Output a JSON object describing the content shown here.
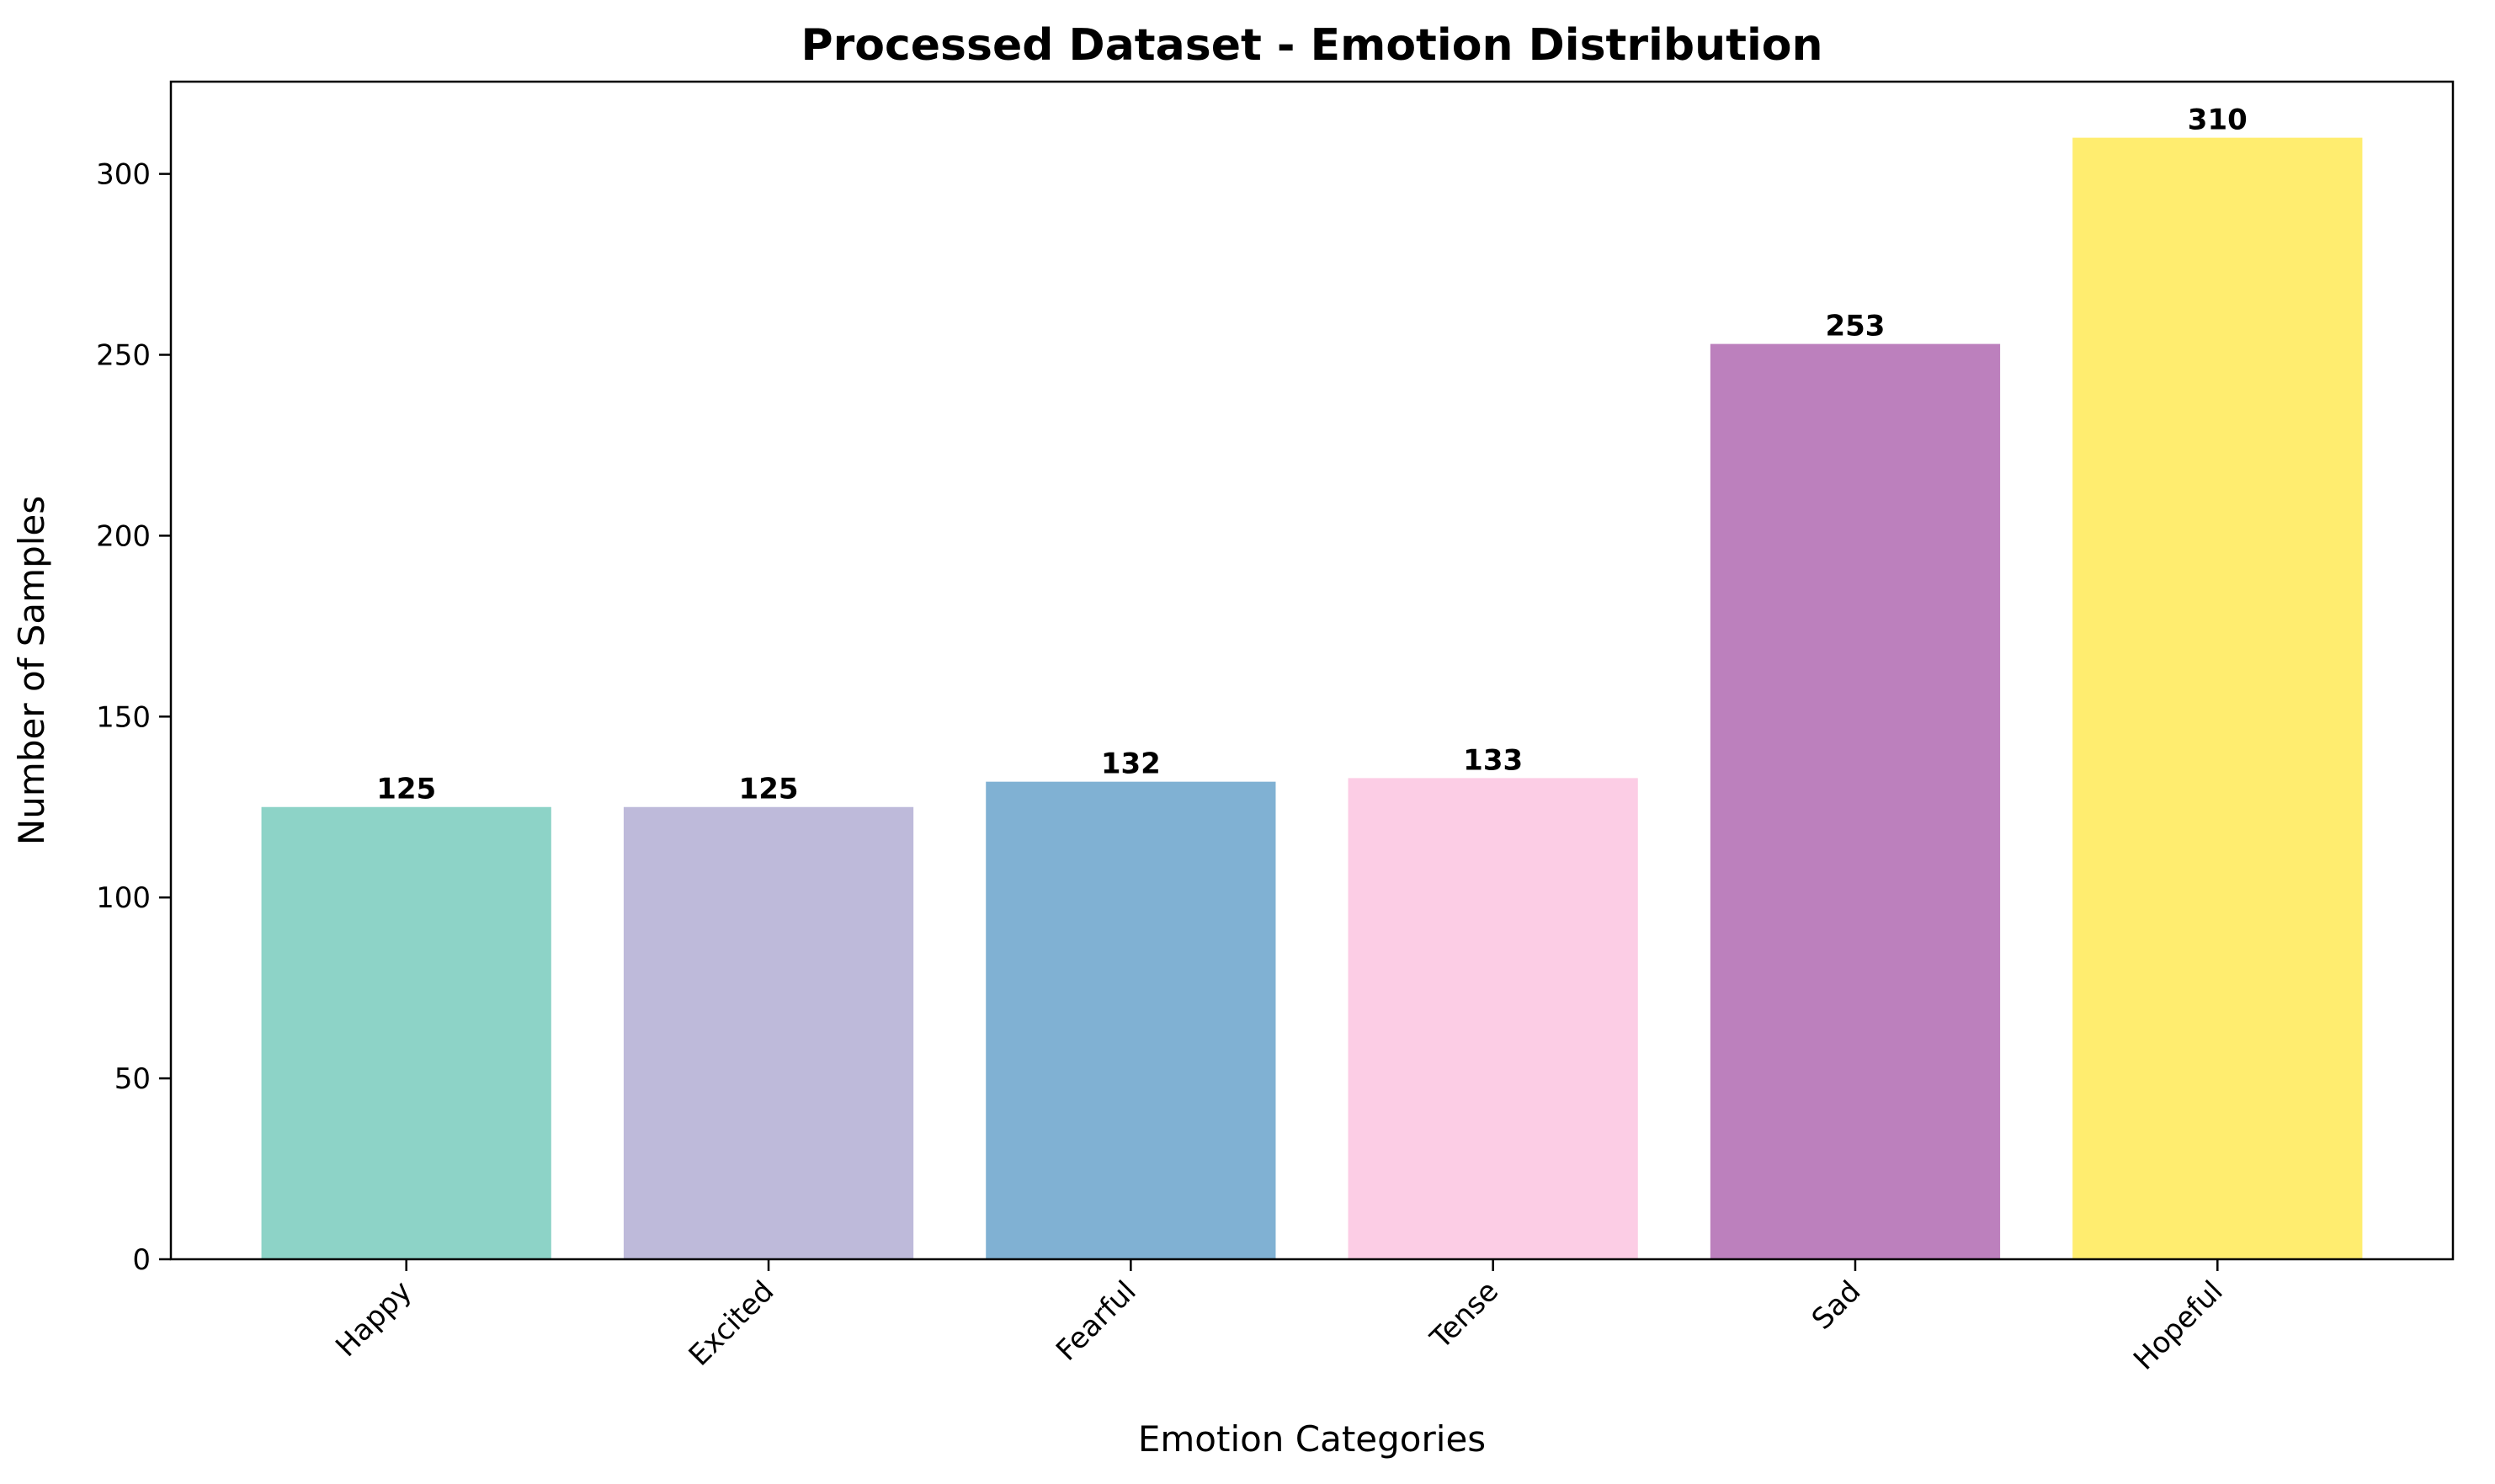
{
  "chart_data": {
    "type": "bar",
    "title": "Processed Dataset - Emotion Distribution",
    "xlabel": "Emotion Categories",
    "ylabel": "Number of Samples",
    "categories": [
      "Happy",
      "Excited",
      "Fearful",
      "Tense",
      "Sad",
      "Hopeful"
    ],
    "values": [
      125,
      125,
      132,
      133,
      253,
      310
    ],
    "data_labels": [
      "125",
      "125",
      "132",
      "133",
      "253",
      "310"
    ],
    "colors": [
      "#8dd3c7",
      "#bebada",
      "#80b1d3",
      "#fccde5",
      "#bc80bd",
      "#ffed6f"
    ],
    "ylim": [
      0,
      325.5
    ],
    "yticks": [
      0,
      50,
      100,
      150,
      200,
      250,
      300
    ],
    "ytick_labels": [
      "0",
      "50",
      "100",
      "150",
      "200",
      "250",
      "300"
    ],
    "grid": false,
    "legend": "none"
  }
}
